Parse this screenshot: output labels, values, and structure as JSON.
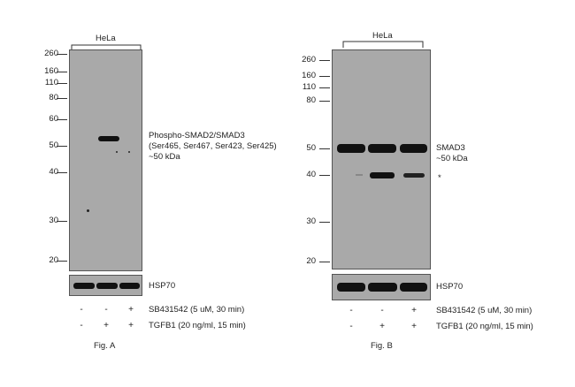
{
  "panel_a": {
    "cell_line": "HeLa",
    "mw_markers": [
      "260",
      "160",
      "110",
      "80",
      "60",
      "50",
      "40",
      "30",
      "20"
    ],
    "target_label": [
      "Phospho-SMAD2/SMAD3",
      "(Ser465, Ser467, Ser423, Ser425)",
      "~50 kDa"
    ],
    "loading_control": "HSP70",
    "treatments": [
      {
        "label": "SB431542 (5 uM, 30 min)",
        "lanes": [
          "-",
          "-",
          "+"
        ]
      },
      {
        "label": "TGFB1 (20 ng/ml, 15 min)",
        "lanes": [
          "-",
          "+",
          "+"
        ]
      }
    ],
    "figure_label": "Fig. A"
  },
  "panel_b": {
    "cell_line": "HeLa",
    "mw_markers": [
      "260",
      "160",
      "110",
      "80",
      "50",
      "40",
      "30",
      "20"
    ],
    "target_label": [
      "SMAD3",
      "~50 kDa"
    ],
    "nonspecific_marker": "*",
    "loading_control": "HSP70",
    "treatments": [
      {
        "label": "SB431542 (5 uM, 30 min)",
        "lanes": [
          "-",
          "-",
          "+"
        ]
      },
      {
        "label": "TGFB1 (20 ng/ml, 15 min)",
        "lanes": [
          "-",
          "+",
          "+"
        ]
      }
    ],
    "figure_label": "Fig. B"
  }
}
